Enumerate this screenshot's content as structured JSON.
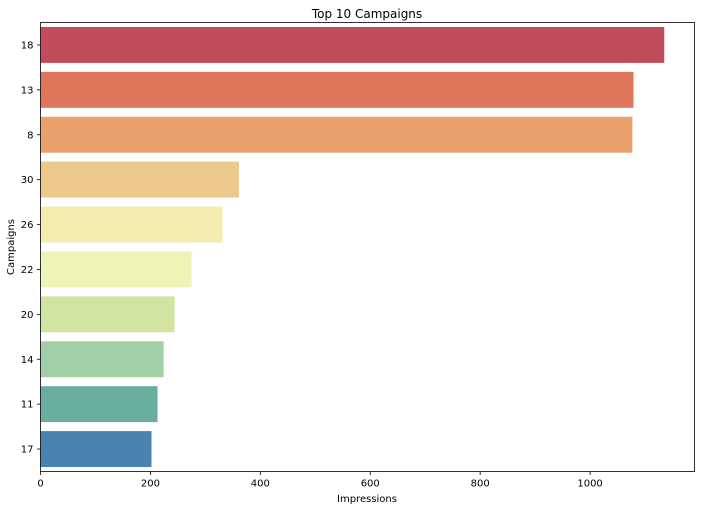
{
  "chart_data": {
    "type": "bar",
    "orientation": "horizontal",
    "title": "Top 10 Campaigns",
    "xlabel": "Impressions",
    "ylabel": "Campaigns",
    "categories": [
      "18",
      "13",
      "8",
      "30",
      "26",
      "22",
      "20",
      "14",
      "11",
      "17"
    ],
    "values": [
      1135,
      1079,
      1077,
      361,
      331,
      275,
      244,
      224,
      213,
      202
    ],
    "colors": [
      "#c24c5c",
      "#df755a",
      "#e9a06d",
      "#ecc98a",
      "#f4ebb0",
      "#eef3b8",
      "#d2e4a2",
      "#a0cfa8",
      "#69ae9f",
      "#4a83b0"
    ],
    "xlim": [
      0,
      1190
    ],
    "x_ticks": [
      0,
      200,
      400,
      600,
      800,
      1000
    ],
    "grid": false,
    "legend": "none"
  }
}
